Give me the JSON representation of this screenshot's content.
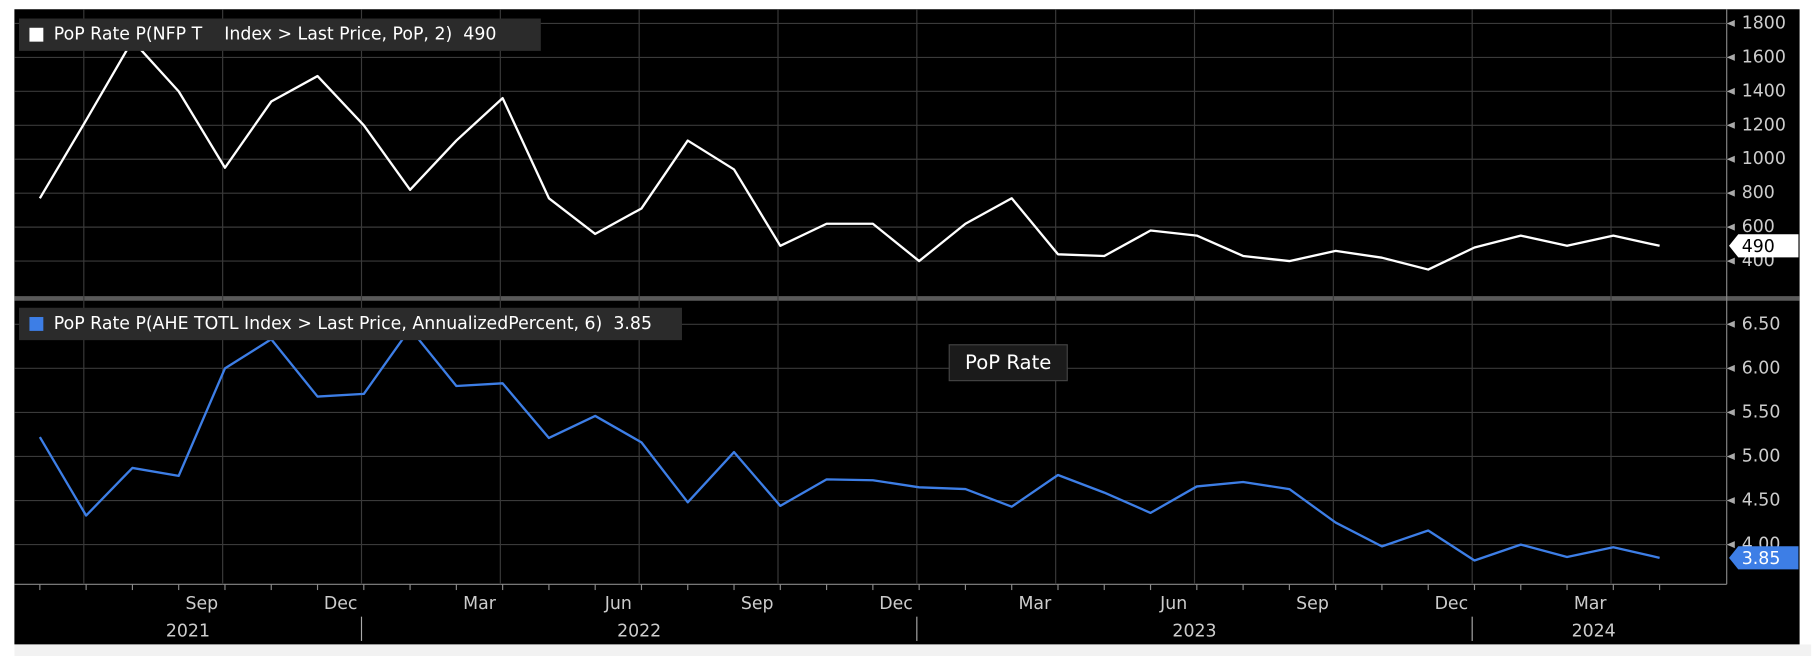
{
  "tooltip": "PoP Rate",
  "chart_data": [
    {
      "type": "line",
      "series": [
        {
          "name": "PoP Rate P(NFP T    Index > Last Price, PoP, 2)",
          "color": "#ffffff",
          "values": [
            770,
            1230,
            1700,
            1400,
            950,
            1340,
            1490,
            1200,
            820,
            1110,
            1360,
            770,
            560,
            710,
            1110,
            940,
            490,
            620,
            620,
            400,
            620,
            770,
            440,
            430,
            580,
            550,
            430,
            400,
            460,
            420,
            350,
            480,
            550,
            490,
            550,
            490
          ]
        }
      ],
      "ylim": [
        200,
        1870
      ],
      "yticks": [
        400,
        600,
        800,
        1000,
        1200,
        1400,
        1600,
        1800
      ],
      "grid": true
    },
    {
      "type": "line",
      "series": [
        {
          "name": "PoP Rate P(AHE TOTL Index > Last Price, AnnualizedPercent, 6)",
          "color": "#3d7ee6",
          "values": [
            5.22,
            4.33,
            4.87,
            4.78,
            6.0,
            6.33,
            5.68,
            5.71,
            6.45,
            5.8,
            5.83,
            5.21,
            5.46,
            5.16,
            4.48,
            5.05,
            4.44,
            4.74,
            4.73,
            4.65,
            4.63,
            4.43,
            4.79,
            4.59,
            4.36,
            4.66,
            4.71,
            4.63,
            4.25,
            3.98,
            4.16,
            3.82,
            4.0,
            3.86,
            3.97,
            3.85
          ]
        }
      ],
      "ylim": [
        3.55,
        6.74
      ],
      "yticks": [
        {
          "value": 4.0,
          "label": "4.00"
        },
        {
          "value": 4.5,
          "label": "4.50"
        },
        {
          "value": 5.0,
          "label": "5.00"
        },
        {
          "value": 5.5,
          "label": "5.50"
        },
        {
          "value": 6.0,
          "label": "6.00"
        },
        {
          "value": 6.5,
          "label": "6.50"
        }
      ],
      "grid": true,
      "categories": [
        null,
        null,
        null,
        null,
        "Sep",
        null,
        null,
        "Dec",
        null,
        null,
        "Mar",
        null,
        null,
        "Jun",
        null,
        null,
        "Sep",
        null,
        null,
        "Dec",
        null,
        null,
        "Mar",
        null,
        null,
        "Jun",
        null,
        null,
        "Sep",
        null,
        null,
        "Dec",
        null,
        null,
        "Mar",
        null
      ],
      "years": [
        "2021",
        "2022",
        "2023",
        "2024"
      ]
    }
  ]
}
